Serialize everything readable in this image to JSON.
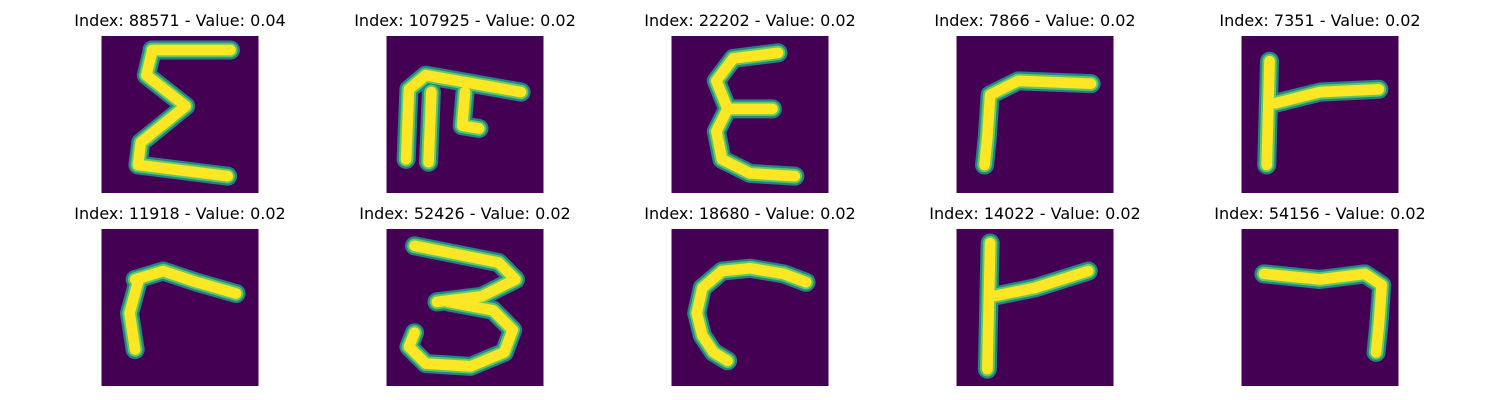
{
  "colors": {
    "background": "#440154",
    "stroke_edge": "#21918c",
    "stroke_mid": "#5ec962",
    "stroke_core": "#fde725"
  },
  "panels": [
    {
      "title": "Index: 88571 - Value: 0.04",
      "glyph": "sigma-like-glyph"
    },
    {
      "title": "Index: 107925 - Value: 0.02",
      "glyph": "arch-hook-glyph"
    },
    {
      "title": "Index: 22202 - Value: 0.02",
      "glyph": "epsilon-like-glyph"
    },
    {
      "title": "Index: 7866 - Value: 0.02",
      "glyph": "gamma-like-glyph"
    },
    {
      "title": "Index: 7351 - Value: 0.02",
      "glyph": "tack-like-glyph"
    },
    {
      "title": "Index: 11918 - Value: 0.02",
      "glyph": "r-like-glyph"
    },
    {
      "title": "Index: 52426 - Value: 0.02",
      "glyph": "three-like-glyph"
    },
    {
      "title": "Index: 18680 - Value: 0.02",
      "glyph": "c-curve-glyph"
    },
    {
      "title": "Index: 14022 - Value: 0.02",
      "glyph": "tack-like-glyph-2"
    },
    {
      "title": "Index: 54156 - Value: 0.02",
      "glyph": "seven-like-glyph"
    }
  ]
}
